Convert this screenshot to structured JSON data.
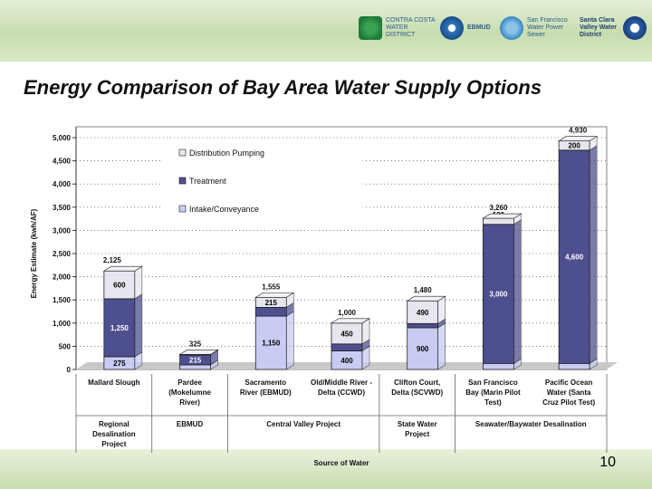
{
  "slide": {
    "title": "Energy Comparison of Bay Area Water Supply Options",
    "page_number": "10"
  },
  "logos": [
    {
      "name": "contra-costa-water-district",
      "text": "CONTRA COSTA WATER DISTRICT"
    },
    {
      "name": "ebmud",
      "text": "EBMUD"
    },
    {
      "name": "sf-water-power-sewer",
      "text": "San Francisco Water Power Sewer"
    },
    {
      "name": "santa-clara-valley-water",
      "text": "Santa Clara Valley Water District"
    }
  ],
  "colors": {
    "intake": "#c9ccf2",
    "treatment": "#4d4f8e",
    "distribution": "#e6e6ee",
    "background_banner": "#c7dcae"
  },
  "chart_data": {
    "type": "bar",
    "stacked": true,
    "ylabel": "Energy Estimate (kwh/AF)",
    "xlabel": "Source of Water",
    "ylim": [
      0,
      5000
    ],
    "yticks": [
      "0",
      "500",
      "1,000",
      "1,500",
      "2,000",
      "2,500",
      "3,000",
      "3,500",
      "4,000",
      "4,500",
      "5,000"
    ],
    "categories": [
      "Mallard Slough",
      "Pardee (Mokelumne River)",
      "Sacramento River (EBMUD)",
      "Old/Middle River - Delta (CCWD)",
      "Clifton Court, Delta (SCVWD)",
      "San Francisco Bay (Marin Pilot Test)",
      "Pacific Ocean Water (Santa Cruz Pilot Test)"
    ],
    "category_lines": [
      [
        "Mallard Slough"
      ],
      [
        "Pardee",
        "(Mokelumne",
        "River)"
      ],
      [
        "Sacramento",
        "River (EBMUD)"
      ],
      [
        "Old/Middle River -",
        "Delta (CCWD)"
      ],
      [
        "Clifton Court,",
        "Delta (SCVWD)"
      ],
      [
        "San Francisco",
        "Bay (Marin Pilot",
        "Test)"
      ],
      [
        "Pacific Ocean",
        "Water (Santa",
        "Cruz Pilot Test)"
      ]
    ],
    "series": [
      {
        "name": "Intake/Conveyance",
        "values": [
          275,
          100,
          1150,
          400,
          900,
          130,
          130
        ],
        "labels": [
          "275",
          "100",
          "1,150",
          "400",
          "900",
          "130",
          "130"
        ]
      },
      {
        "name": "Treatment",
        "values": [
          1250,
          215,
          190,
          150,
          90,
          3000,
          4600
        ],
        "labels": [
          "1,250",
          "215",
          "190",
          "150",
          "90",
          "3,000",
          "4,600"
        ]
      },
      {
        "name": "Distribution Pumping",
        "values": [
          600,
          10,
          215,
          450,
          490,
          130,
          200
        ],
        "labels": [
          "600",
          "",
          "215",
          "450",
          "490",
          "130",
          "200"
        ]
      }
    ],
    "totals": [
      "2,125",
      "325",
      "1,555",
      "1,000",
      "1,480",
      "3,260",
      "4,930"
    ],
    "legend_order": [
      "Distribution Pumping",
      "Treatment",
      "Intake/Conveyance"
    ],
    "groups": [
      {
        "label": "Regional Desalination Project",
        "lines": [
          "Regional",
          "Desalination",
          "Project"
        ]
      },
      {
        "label": "EBMUD",
        "lines": [
          "EBMUD"
        ]
      },
      {
        "label": "Central Valley Project",
        "lines": [
          "Central Valley Project"
        ]
      },
      {
        "label": "State Water Project",
        "lines": [
          "State Water",
          "Project"
        ]
      },
      {
        "label": "Seawater/Baywater Desalination",
        "lines": [
          "Seawater/Baywater Desalination"
        ]
      }
    ]
  }
}
